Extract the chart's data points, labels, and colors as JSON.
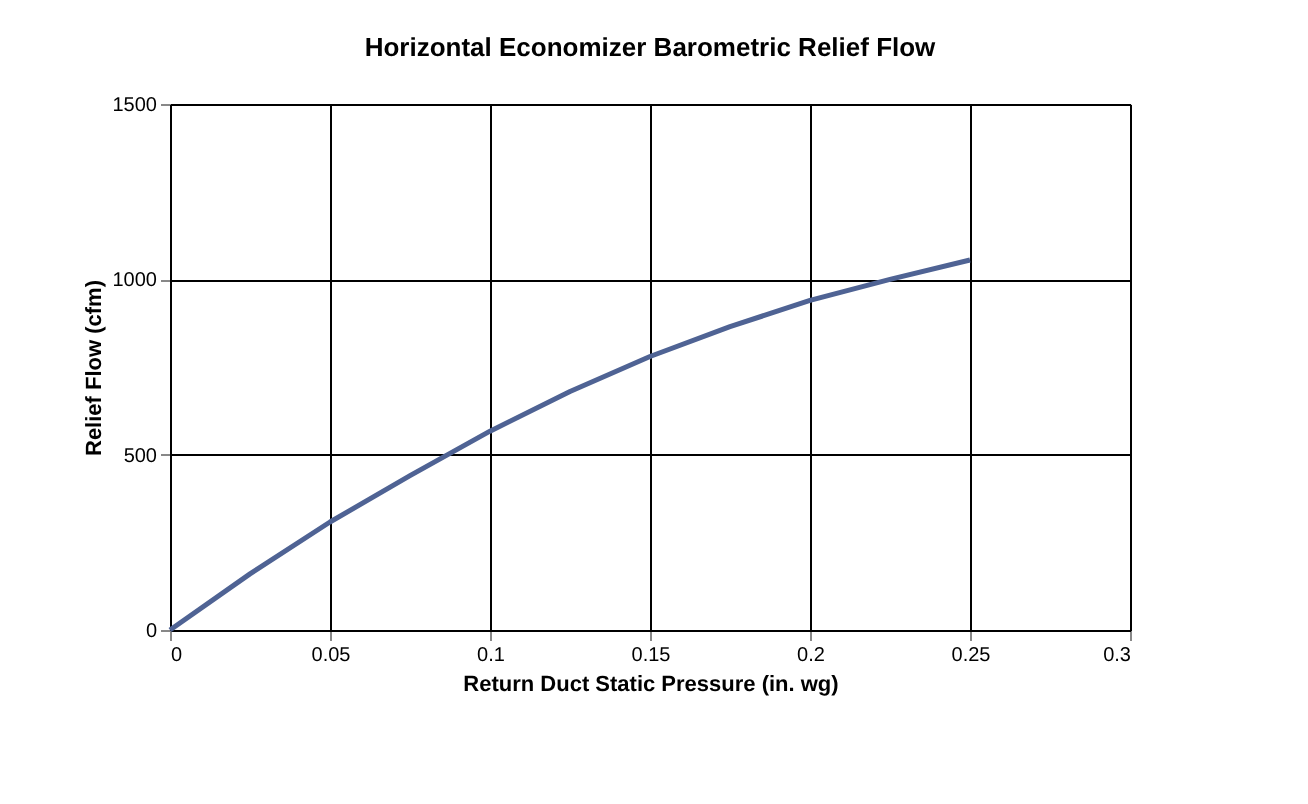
{
  "chart_data": {
    "type": "line",
    "title": "Horizontal Economizer Barometric Relief Flow",
    "xlabel": "Return Duct Static Pressure (in. wg)",
    "ylabel": "Relief Flow (cfm)",
    "x": [
      0,
      0.025,
      0.05,
      0.075,
      0.1,
      0.125,
      0.15,
      0.175,
      0.2,
      0.225,
      0.25
    ],
    "series": [
      {
        "color": "#4f6394",
        "values": [
          0,
          160,
          308,
          440,
          567,
          680,
          780,
          865,
          940,
          1000,
          1055
        ]
      }
    ],
    "xlim": [
      0,
      0.3
    ],
    "xticks": [
      0,
      0.05,
      0.1,
      0.15,
      0.2,
      0.25,
      0.3
    ],
    "ylim": [
      0,
      1500
    ],
    "yticks": [
      0,
      500,
      1000,
      1500
    ],
    "grid": true,
    "marker": "none",
    "line_style": "solid"
  }
}
